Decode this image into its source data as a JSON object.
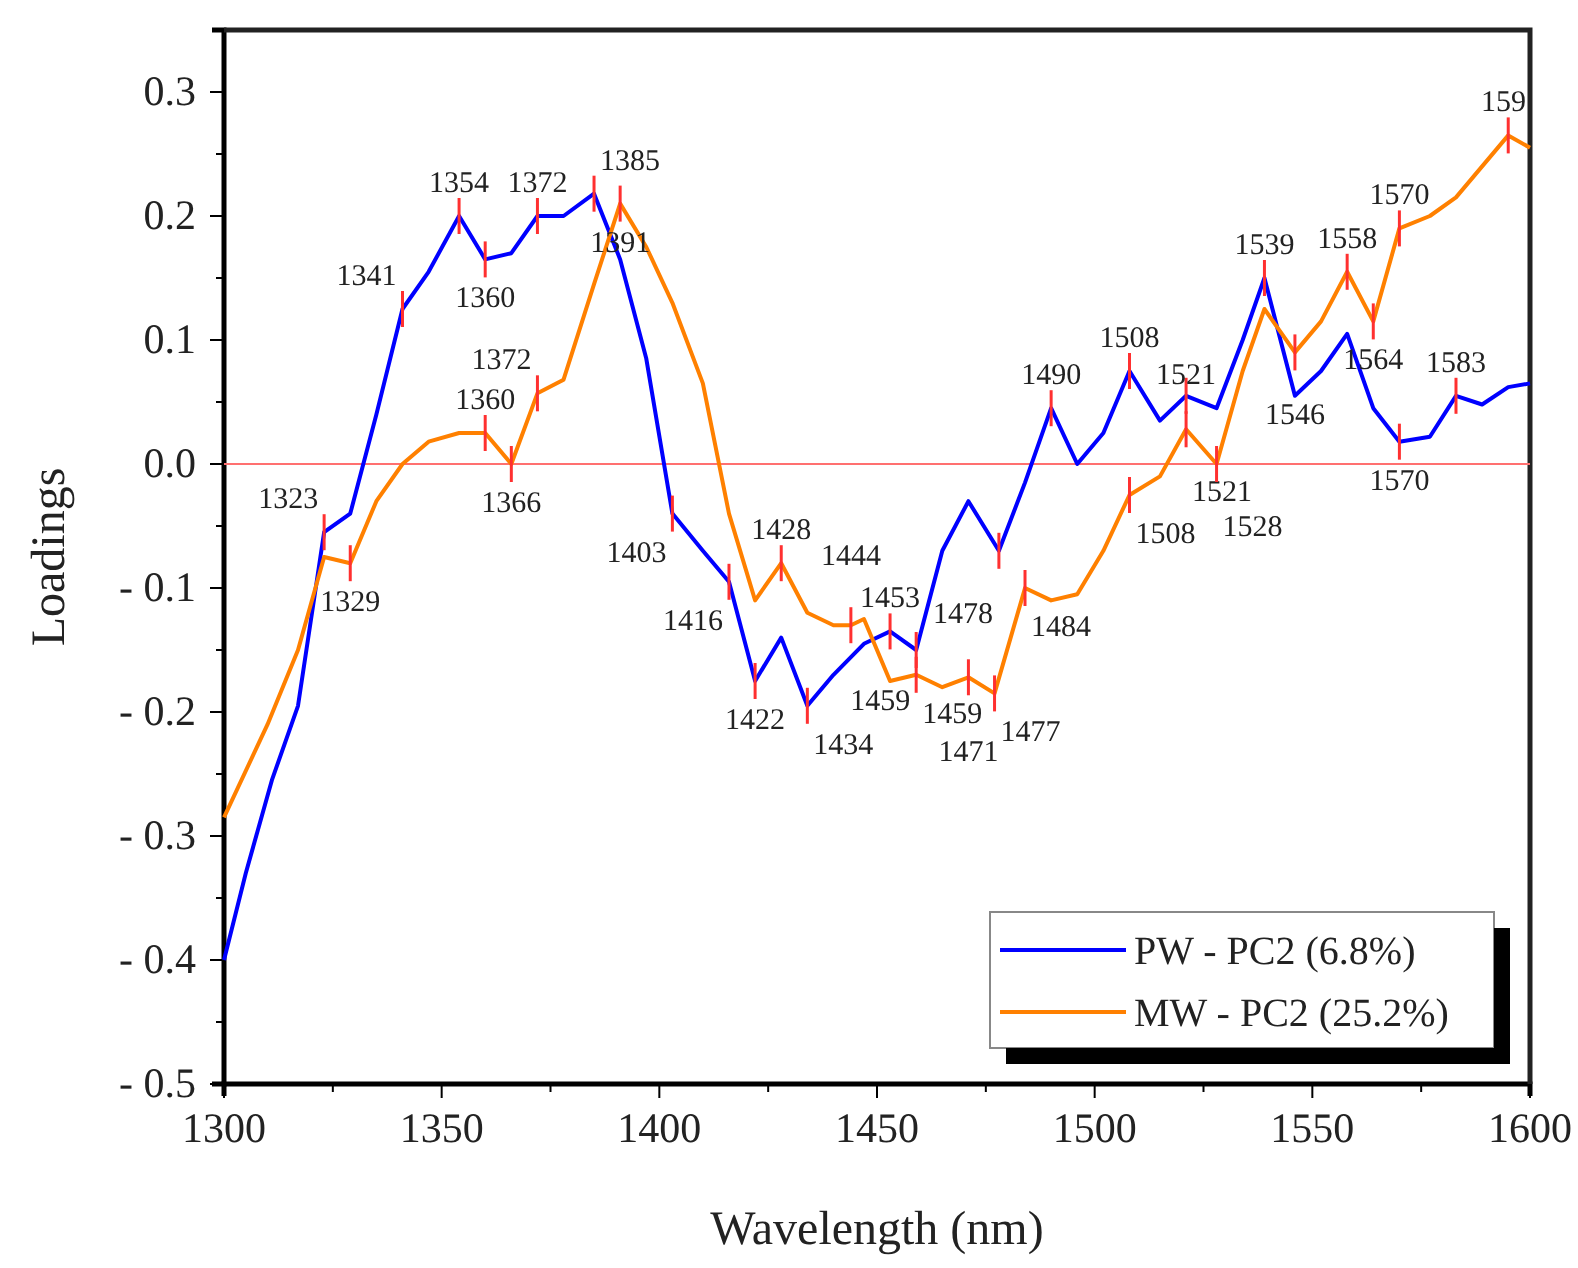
{
  "chart_data": {
    "type": "line",
    "xlabel": "Wavelength (nm)",
    "ylabel": "Loadings",
    "xlim": [
      1300,
      1600
    ],
    "xticks": [
      1300,
      {
        "value": 1325,
        "label": null
      },
      1350,
      {
        "value": 1375,
        "label": null
      },
      1400,
      {
        "value": 1425,
        "label": null
      },
      1450,
      {
        "value": 1475,
        "label": null
      },
      1500,
      {
        "value": 1525,
        "label": null
      },
      1550,
      {
        "value": 1575,
        "label": null
      },
      1600
    ],
    "ylim": [
      -0.5,
      0.35
    ],
    "yticks": [
      {
        "value": -0.5,
        "label": "- 0.5"
      },
      {
        "value": -0.45,
        "label": null
      },
      {
        "value": -0.4,
        "label": "- 0.4"
      },
      {
        "value": -0.35,
        "label": null
      },
      {
        "value": -0.3,
        "label": "- 0.3"
      },
      {
        "value": -0.25,
        "label": null
      },
      {
        "value": -0.2,
        "label": "- 0.2"
      },
      {
        "value": -0.15,
        "label": null
      },
      {
        "value": -0.1,
        "label": "- 0.1"
      },
      {
        "value": -0.05,
        "label": null
      },
      {
        "value": 0,
        "label": "0.0"
      },
      {
        "value": 0.05,
        "label": null
      },
      0.1,
      {
        "value": 0.15,
        "label": null
      },
      0.2,
      {
        "value": 0.25,
        "label": null
      },
      0.3
    ],
    "grid": false,
    "legend": "bottom right",
    "marker": "none",
    "line_style": "solid",
    "ref_lines": [
      {
        "axis": "y",
        "value": 0,
        "color": "#ff7070"
      }
    ],
    "series": [
      {
        "name": "PW - PC2 (6.8%)",
        "color": "#0000ff",
        "x": [
          1300,
          1305,
          1311,
          1317,
          1323,
          1329,
          1335,
          1341,
          1347,
          1354,
          1360,
          1366,
          1372,
          1378,
          1385,
          1391,
          1397,
          1403,
          1410,
          1416,
          1422,
          1428,
          1434,
          1440,
          1447,
          1453,
          1459,
          1465,
          1471,
          1478,
          1484,
          1490,
          1496,
          1502,
          1508,
          1515,
          1521,
          1528,
          1534,
          1539,
          1546,
          1552,
          1558,
          1564,
          1570,
          1577,
          1583,
          1589,
          1595,
          1600
        ],
        "values": [
          -0.4,
          -0.33,
          -0.255,
          -0.195,
          -0.055,
          -0.04,
          0.04,
          0.125,
          0.155,
          0.2,
          0.165,
          0.17,
          0.2,
          0.2,
          0.218,
          0.165,
          0.085,
          -0.04,
          -0.07,
          -0.095,
          -0.175,
          -0.14,
          -0.195,
          -0.17,
          -0.145,
          -0.135,
          -0.15,
          -0.07,
          -0.03,
          -0.07,
          -0.015,
          0.045,
          0,
          0.025,
          0.075,
          0.035,
          0.055,
          0.045,
          0.1,
          0.15,
          0.055,
          0.075,
          0.105,
          0.045,
          0.018,
          0.022,
          0.055,
          0.048,
          0.062,
          0.065
        ]
      },
      {
        "name": "MW - PC2 (25.2%)",
        "color": "#ff8000",
        "x": [
          1300,
          1310,
          1317,
          1323,
          1329,
          1335,
          1341,
          1347,
          1354,
          1360,
          1366,
          1372,
          1378,
          1385,
          1391,
          1397,
          1403,
          1410,
          1416,
          1422,
          1428,
          1434,
          1440,
          1444,
          1447,
          1453,
          1459,
          1465,
          1471,
          1477,
          1484,
          1490,
          1496,
          1502,
          1508,
          1515,
          1521,
          1528,
          1534,
          1539,
          1546,
          1552,
          1558,
          1564,
          1570,
          1577,
          1583,
          1589,
          1595,
          1600
        ],
        "values": [
          -0.285,
          -0.21,
          -0.15,
          -0.075,
          -0.08,
          -0.03,
          0,
          0.018,
          0.025,
          0.025,
          0,
          0.057,
          0.068,
          0.145,
          0.21,
          0.175,
          0.13,
          0.065,
          -0.04,
          -0.11,
          -0.08,
          -0.12,
          -0.13,
          -0.13,
          -0.125,
          -0.175,
          -0.17,
          -0.18,
          -0.172,
          -0.185,
          -0.1,
          -0.11,
          -0.105,
          -0.07,
          -0.025,
          -0.01,
          0.028,
          0,
          0.075,
          0.125,
          0.09,
          0.115,
          0.155,
          0.115,
          0.19,
          0.2,
          0.215,
          0.24,
          0.265,
          0.255
        ]
      }
    ],
    "annotations": [
      {
        "text": "1323",
        "x": 1323,
        "y": -0.055
      },
      {
        "text": "1341",
        "x": 1341,
        "y": 0.125
      },
      {
        "text": "1354",
        "x": 1354,
        "y": 0.2
      },
      {
        "text": "1360",
        "x": 1360,
        "y": 0.165
      },
      {
        "text": "1372",
        "x": 1372,
        "y": 0.2
      },
      {
        "text": "1385",
        "x": 1385,
        "y": 0.218
      },
      {
        "text": "1403",
        "x": 1403,
        "y": -0.04
      },
      {
        "text": "1416",
        "x": 1416,
        "y": -0.095
      },
      {
        "text": "1422",
        "x": 1422,
        "y": -0.175
      },
      {
        "text": "1434",
        "x": 1434,
        "y": -0.195
      },
      {
        "text": "1453",
        "x": 1453,
        "y": -0.135
      },
      {
        "text": "1459",
        "x": 1459,
        "y": -0.15
      },
      {
        "text": "1478",
        "x": 1478,
        "y": -0.07
      },
      {
        "text": "1490",
        "x": 1490,
        "y": 0.045
      },
      {
        "text": "1508",
        "x": 1508,
        "y": 0.075
      },
      {
        "text": "1521",
        "x": 1521,
        "y": 0.055
      },
      {
        "text": "1539",
        "x": 1539,
        "y": 0.15
      },
      {
        "text": "1570",
        "x": 1570,
        "y": 0.018
      },
      {
        "text": "1583",
        "x": 1583,
        "y": 0.055
      },
      {
        "text": "1329",
        "x": 1329,
        "y": -0.08
      },
      {
        "text": "1360",
        "x": 1360,
        "y": 0.025
      },
      {
        "text": "1366",
        "x": 1366,
        "y": 0
      },
      {
        "text": "1372",
        "x": 1372,
        "y": 0.057
      },
      {
        "text": "1391",
        "x": 1391,
        "y": 0.21
      },
      {
        "text": "1428",
        "x": 1428,
        "y": -0.08
      },
      {
        "text": "1444",
        "x": 1444,
        "y": -0.13
      },
      {
        "text": "1459",
        "x": 1459,
        "y": -0.17
      },
      {
        "text": "1471",
        "x": 1471,
        "y": -0.172
      },
      {
        "text": "1477",
        "x": 1477,
        "y": -0.185
      },
      {
        "text": "1484",
        "x": 1484,
        "y": -0.1
      },
      {
        "text": "1508",
        "x": 1508,
        "y": -0.025
      },
      {
        "text": "1521",
        "x": 1521,
        "y": 0.028
      },
      {
        "text": "1528",
        "x": 1528,
        "y": 0
      },
      {
        "text": "1546",
        "x": 1546,
        "y": 0.09
      },
      {
        "text": "1558",
        "x": 1558,
        "y": 0.155
      },
      {
        "text": "1564",
        "x": 1564,
        "y": 0.115
      },
      {
        "text": "1570",
        "x": 1570,
        "y": 0.19
      },
      {
        "text": "159",
        "x": 1595,
        "y": 0.265
      }
    ]
  }
}
